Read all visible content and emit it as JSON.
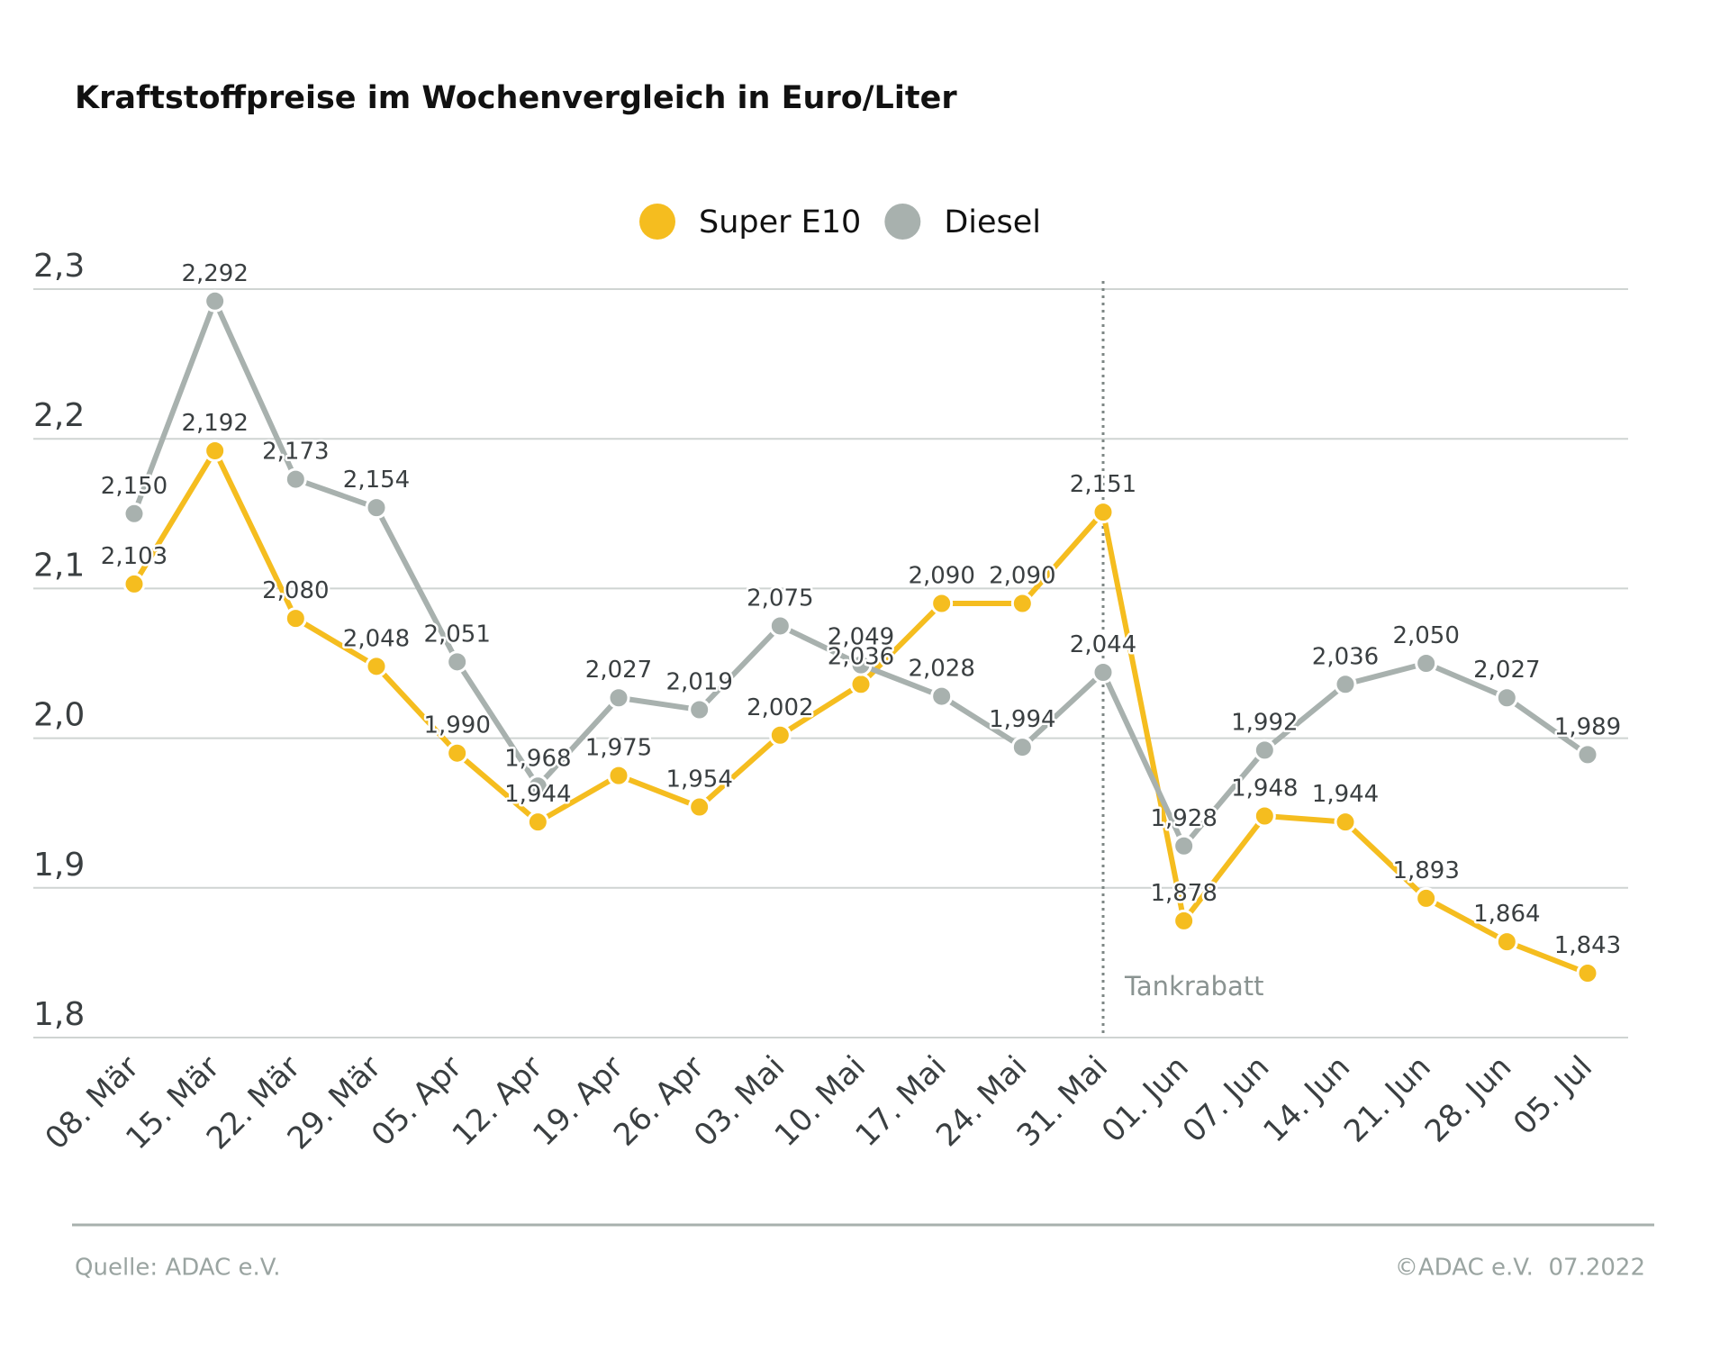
{
  "chart_data": {
    "type": "line",
    "title": "Kraftstoffpreise im Wochenvergleich in Euro/Liter",
    "categories": [
      "08. Mär",
      "15. Mär",
      "22. Mär",
      "29. Mär",
      "05. Apr",
      "12. Apr",
      "19. Apr",
      "26. Apr",
      "03. Mai",
      "10. Mai",
      "17. Mai",
      "24. Mai",
      "31. Mai",
      "01. Jun",
      "07. Jun",
      "14. Jun",
      "21. Jun",
      "28. Jun",
      "05. Jul"
    ],
    "series": [
      {
        "name": "Super E10",
        "color": "#f5bd1f",
        "values": [
          2.103,
          2.192,
          2.08,
          2.048,
          1.99,
          1.944,
          1.975,
          1.954,
          2.002,
          2.036,
          2.09,
          2.09,
          2.151,
          1.878,
          1.948,
          1.944,
          1.893,
          1.864,
          1.843
        ],
        "value_labels": [
          "2,103",
          "2,192",
          "2,080",
          "2,048",
          "1,990",
          "1,944",
          "1,975",
          "1,954",
          "2,002",
          "2,036",
          "2,090",
          "2,090",
          "2,151",
          "1,878",
          "1,948",
          "1,944",
          "1,893",
          "1,864",
          "1,843"
        ]
      },
      {
        "name": "Diesel",
        "color": "#a8b1ae",
        "values": [
          2.15,
          2.292,
          2.173,
          2.154,
          2.051,
          1.968,
          2.027,
          2.019,
          2.075,
          2.049,
          2.028,
          1.994,
          2.044,
          1.928,
          1.992,
          2.036,
          2.05,
          2.027,
          1.989
        ],
        "value_labels": [
          "2,150",
          "2,292",
          "2,173",
          "2,154",
          "2,051",
          "1,968",
          "2,027",
          "2,019",
          "2,075",
          "2,049",
          "2,028",
          "1,994",
          "2,044",
          "1,928",
          "1,992",
          "2,036",
          "2,050",
          "2,027",
          "1,989"
        ]
      }
    ],
    "ylim": [
      1.8,
      2.3
    ],
    "yticks": [
      {
        "value": 1.8,
        "label": "1,8"
      },
      {
        "value": 1.9,
        "label": "1,9"
      },
      {
        "value": 2.0,
        "label": "2,0"
      },
      {
        "value": 2.1,
        "label": "2,1"
      },
      {
        "value": 2.2,
        "label": "2,2"
      },
      {
        "value": 2.3,
        "label": "2,3"
      }
    ],
    "grid": true,
    "legend": "top",
    "annotation": {
      "text": "Tankrabatt",
      "category": "31. Mai"
    },
    "source": "Quelle: ADAC e.V.",
    "copyright": "©ADAC e.V.  07.2022"
  }
}
